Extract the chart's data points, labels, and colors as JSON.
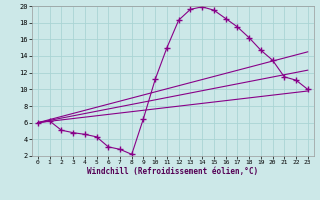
{
  "xlabel": "Windchill (Refroidissement éolien,°C)",
  "bg_color": "#cce8e8",
  "line_color": "#880088",
  "grid_color": "#aad4d4",
  "xlim": [
    -0.5,
    23.5
  ],
  "ylim": [
    2,
    20
  ],
  "xticks": [
    0,
    1,
    2,
    3,
    4,
    5,
    6,
    7,
    8,
    9,
    10,
    11,
    12,
    13,
    14,
    15,
    16,
    17,
    18,
    19,
    20,
    21,
    22,
    23
  ],
  "yticks": [
    2,
    4,
    6,
    8,
    10,
    12,
    14,
    16,
    18,
    20
  ],
  "line1_x": [
    0,
    1,
    2,
    3,
    4,
    5,
    6,
    7,
    8,
    9,
    10,
    11,
    12,
    13,
    14,
    15,
    16,
    17,
    18,
    19,
    20,
    21,
    22,
    23
  ],
  "line1_y": [
    6.0,
    6.2,
    5.1,
    4.8,
    4.6,
    4.3,
    3.1,
    2.8,
    2.2,
    6.5,
    11.2,
    15.0,
    18.3,
    19.6,
    19.9,
    19.5,
    18.5,
    17.5,
    16.2,
    14.7,
    13.5,
    11.5,
    11.1,
    10.0
  ],
  "line2_x": [
    0,
    23
  ],
  "line2_y": [
    6.0,
    9.8
  ],
  "line3_x": [
    0,
    23
  ],
  "line3_y": [
    6.0,
    14.5
  ],
  "line4_x": [
    0,
    23
  ],
  "line4_y": [
    6.0,
    12.3
  ]
}
